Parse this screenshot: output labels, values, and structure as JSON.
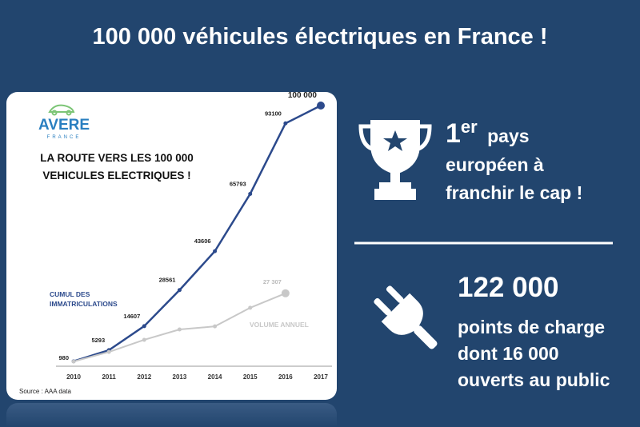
{
  "title": "100 000 véhicules électriques en France !",
  "logo": {
    "name": "AVERE",
    "subtitle": "FRANCE"
  },
  "chart_data": {
    "type": "line",
    "title": "LA ROUTE VERS LES 100 000 VEHICULES ELECTRIQUES !",
    "source": "Source : AAA data",
    "categories": [
      "2010",
      "2011",
      "2012",
      "2013",
      "2014",
      "2015",
      "2016",
      "2017"
    ],
    "series": [
      {
        "name": "CUMUL DES IMMATRICULATIONS",
        "color": "#2c4a8c",
        "values": [
          980,
          5293,
          14607,
          28561,
          43606,
          65793,
          93100,
          100000
        ],
        "value_labels": [
          "980",
          "5293",
          "14607",
          "28561",
          "43606",
          "65793",
          "93100",
          "100 000"
        ]
      },
      {
        "name": "VOLUME ANNUEL",
        "color": "#c8c8c8",
        "values": [
          900,
          4600,
          9300,
          13300,
          14500,
          21700,
          27307,
          null
        ],
        "value_labels": [
          null,
          null,
          null,
          null,
          null,
          null,
          "27 307",
          null
        ]
      }
    ]
  },
  "highlights": [
    {
      "number": "1",
      "suffix": "er",
      "lines": [
        "pays",
        "européen à",
        "franchir le cap !"
      ]
    },
    {
      "number": "122 000",
      "lines": [
        "points de charge",
        "dont 16 000",
        "ouverts au public"
      ]
    }
  ]
}
